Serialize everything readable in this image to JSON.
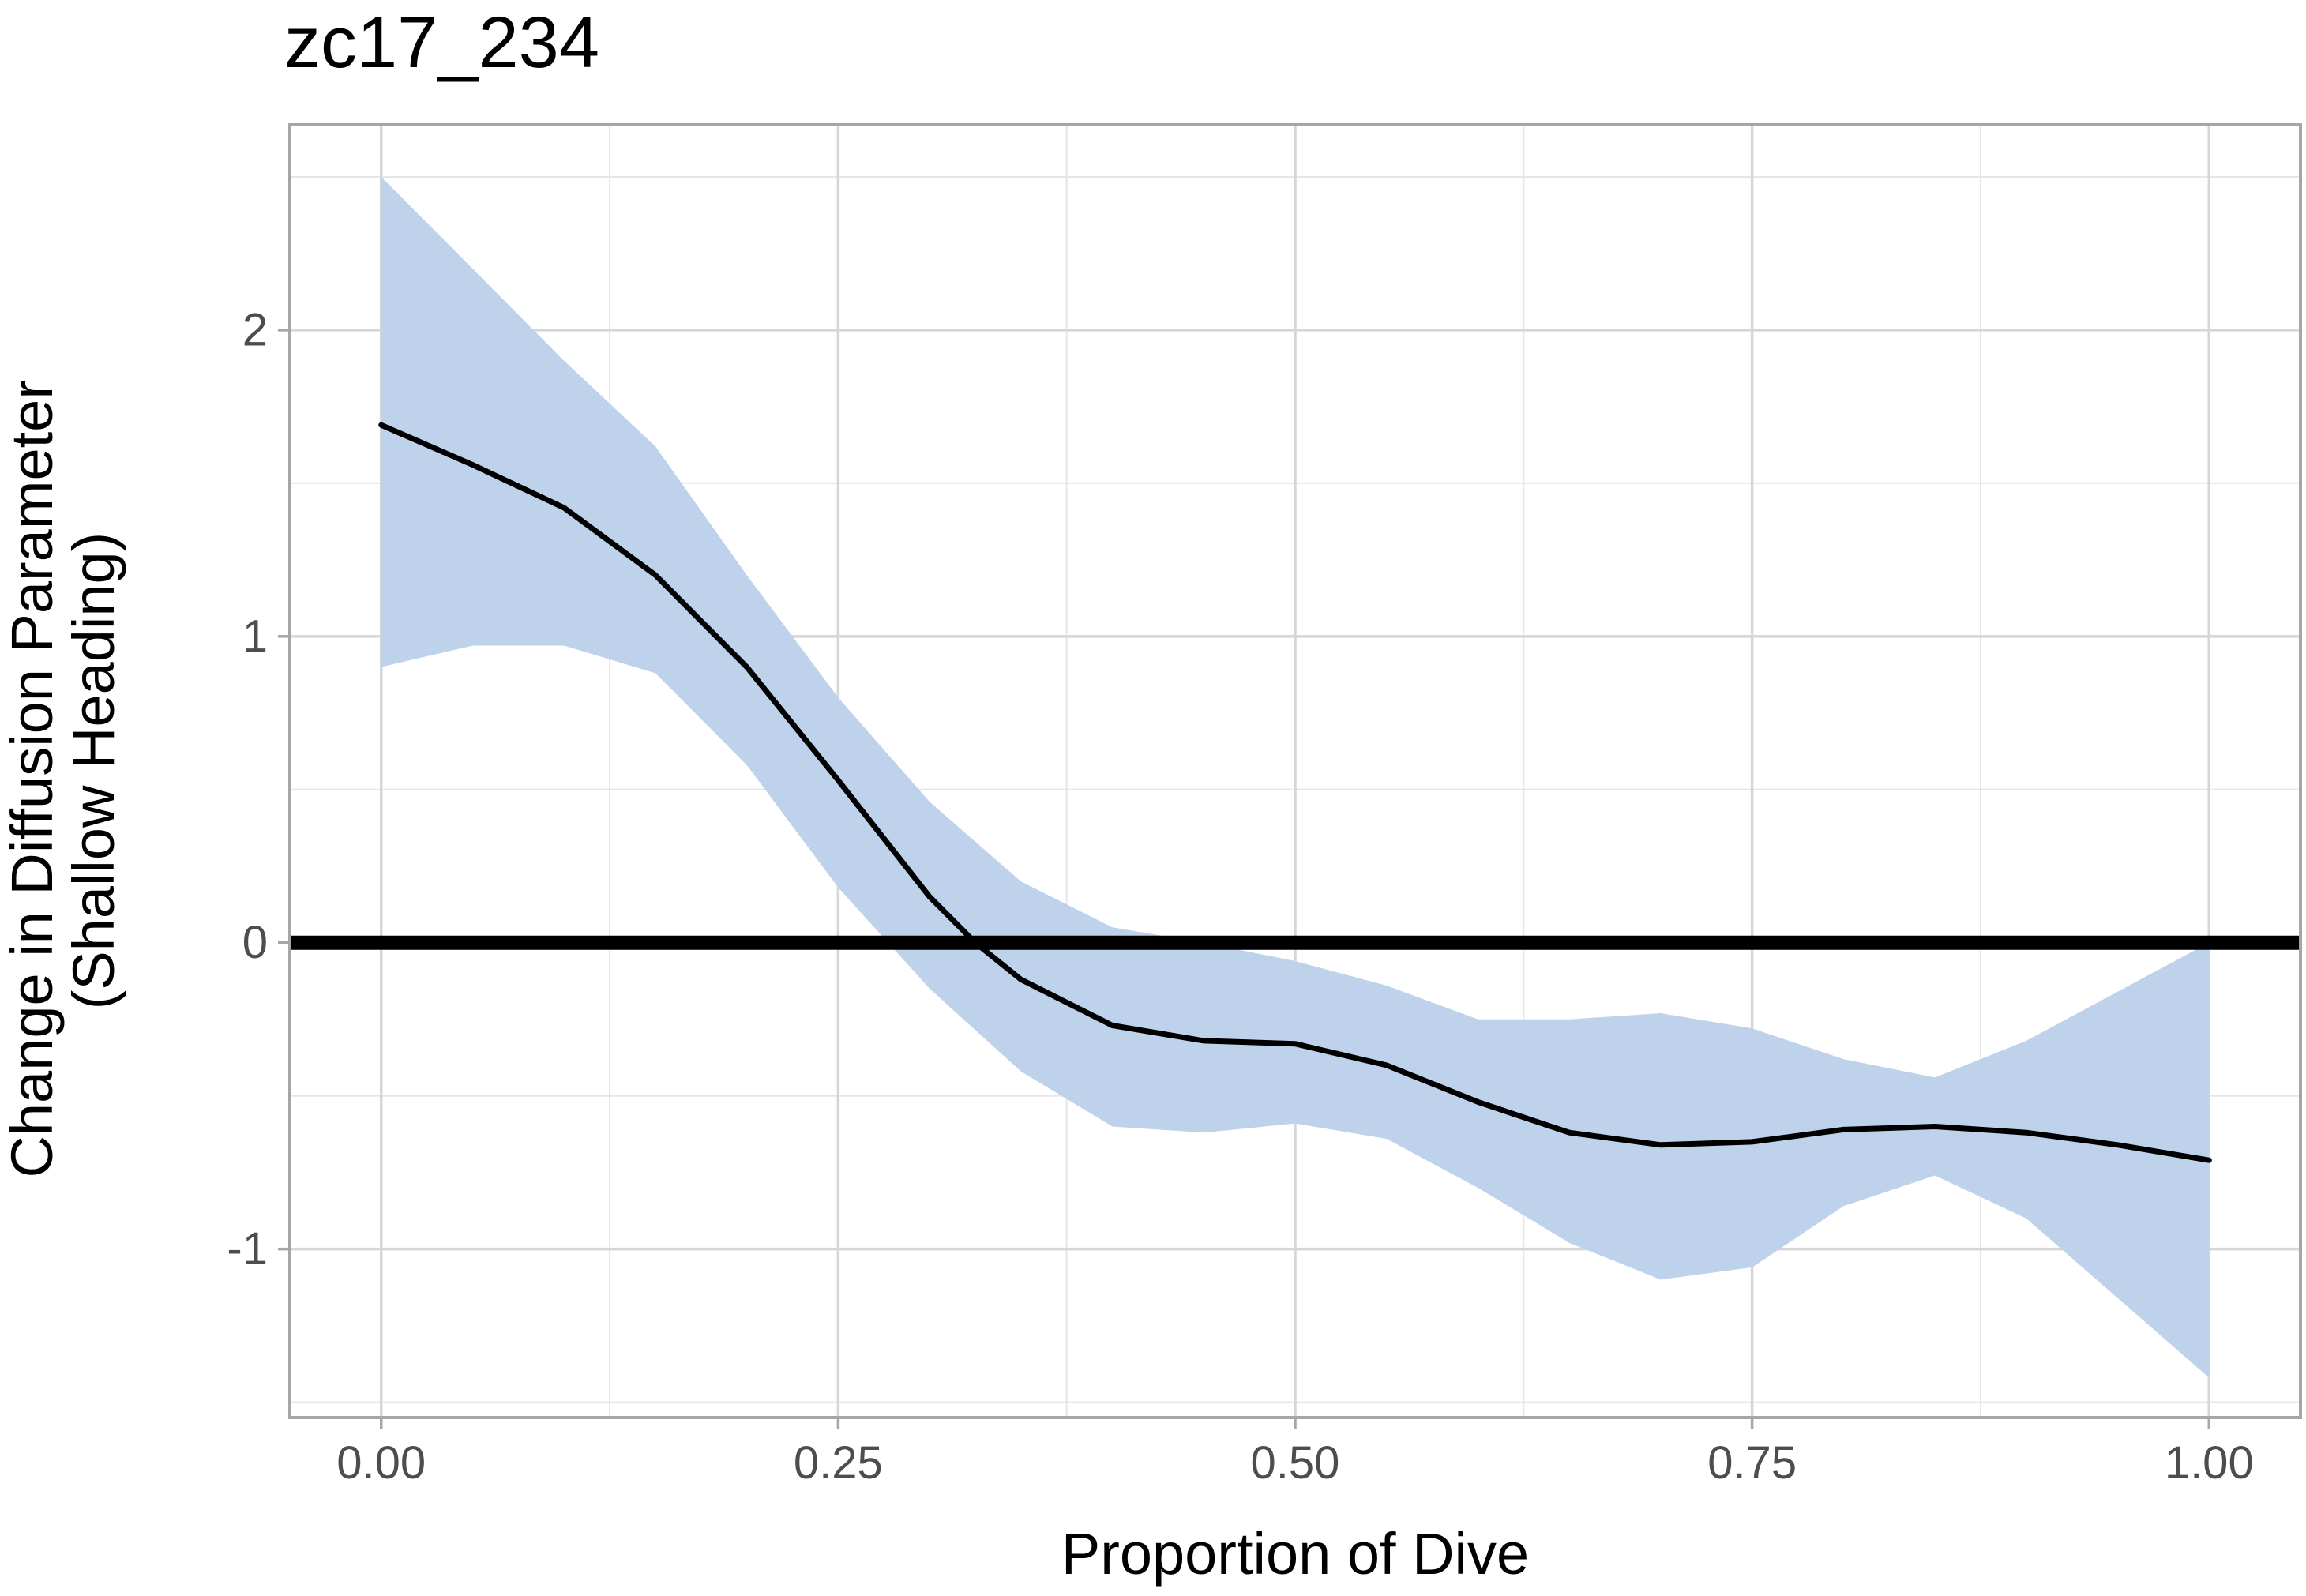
{
  "chart_data": {
    "type": "line",
    "title": "zc17_234",
    "xlabel": "Proportion of Dive",
    "ylabel_lines": [
      "Change in Diffusion Parameter",
      "(Shallow Heading)"
    ],
    "xlim": [
      -0.05,
      1.05
    ],
    "ylim": [
      -1.55,
      2.67
    ],
    "x_ticks": [
      0.0,
      0.25,
      0.5,
      0.75,
      1.0
    ],
    "x_tick_labels": [
      "0.00",
      "0.25",
      "0.50",
      "0.75",
      "1.00"
    ],
    "x_minor_ticks": [
      0.125,
      0.375,
      0.625,
      0.875
    ],
    "y_ticks": [
      -1,
      0,
      1,
      2
    ],
    "y_tick_labels": [
      "-1",
      "0",
      "1",
      "2"
    ],
    "y_minor_ticks": [
      -1.5,
      -0.5,
      0.5,
      1.5,
      2.5
    ],
    "grid": true,
    "reference_line": {
      "y": 0,
      "color": "#000000"
    },
    "ribbon_color": "#bed2ec",
    "line_color": "#000000",
    "series": [
      {
        "type": "line",
        "x": [
          0.0,
          0.05,
          0.1,
          0.15,
          0.2,
          0.25,
          0.3,
          0.325,
          0.35,
          0.4,
          0.45,
          0.5,
          0.55,
          0.6,
          0.65,
          0.7,
          0.75,
          0.8,
          0.85,
          0.9,
          0.95,
          1.0
        ],
        "y": [
          1.69,
          1.56,
          1.42,
          1.2,
          0.9,
          0.53,
          0.15,
          0.0,
          -0.12,
          -0.27,
          -0.32,
          -0.33,
          -0.4,
          -0.52,
          -0.62,
          -0.66,
          -0.65,
          -0.61,
          -0.6,
          -0.62,
          -0.66,
          -0.71
        ]
      },
      {
        "type": "ribbon",
        "x": [
          0.0,
          0.05,
          0.1,
          0.15,
          0.2,
          0.25,
          0.3,
          0.35,
          0.4,
          0.45,
          0.5,
          0.55,
          0.6,
          0.65,
          0.7,
          0.75,
          0.8,
          0.85,
          0.9,
          0.95,
          1.0
        ],
        "ymin": [
          0.9,
          0.97,
          0.97,
          0.88,
          0.58,
          0.18,
          -0.15,
          -0.42,
          -0.6,
          -0.62,
          -0.59,
          -0.64,
          -0.8,
          -0.98,
          -1.1,
          -1.06,
          -0.86,
          -0.76,
          -0.9,
          -1.16,
          -1.42
        ],
        "ymax": [
          2.5,
          2.2,
          1.9,
          1.62,
          1.2,
          0.8,
          0.46,
          0.2,
          0.05,
          0.0,
          -0.06,
          -0.14,
          -0.25,
          -0.25,
          -0.23,
          -0.28,
          -0.38,
          -0.44,
          -0.32,
          -0.16,
          0.0
        ]
      }
    ]
  }
}
